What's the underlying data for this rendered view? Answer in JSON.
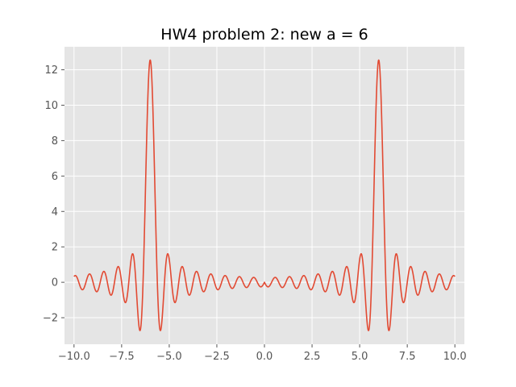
{
  "chart_data": {
    "type": "line",
    "title": "HW4 problem 2: new a = 6",
    "xlabel": "",
    "ylabel": "",
    "xlim": [
      -10.5,
      10.5
    ],
    "ylim": [
      -3.5,
      13.3
    ],
    "grid": true,
    "legend": "none",
    "x_ticks": [
      -10.0,
      -7.5,
      -5.0,
      -2.5,
      0.0,
      2.5,
      5.0,
      7.5,
      10.0
    ],
    "x_tick_labels": [
      "−10.0",
      "−7.5",
      "−5.0",
      "−2.5",
      "0.0",
      "2.5",
      "5.0",
      "7.5",
      "10.0"
    ],
    "y_ticks": [
      -2,
      0,
      2,
      4,
      6,
      8,
      10,
      12
    ],
    "y_tick_labels": [
      "−2",
      "0",
      "2",
      "4",
      "6",
      "8",
      "10",
      "12"
    ],
    "series": [
      {
        "color": "#e24a33",
        "x_range": [
          -10,
          10
        ],
        "points": [
          [
            -10.0,
            0.0
          ],
          [
            -9.25,
            0.3
          ],
          [
            -8.6,
            0.4
          ],
          [
            -8.0,
            0.5
          ],
          [
            -7.6,
            0.65
          ],
          [
            -7.2,
            0.9
          ],
          [
            -6.8,
            1.65
          ],
          [
            -6.55,
            -1.3
          ],
          [
            -6.3,
            -2.8
          ],
          [
            -6.0,
            12.55
          ],
          [
            -5.7,
            -2.6
          ],
          [
            -5.5,
            1.5
          ],
          [
            -5.2,
            0.75
          ],
          [
            -4.9,
            0.55
          ],
          [
            -4.5,
            0.4
          ],
          [
            -3.5,
            0.25
          ],
          [
            -2.5,
            0.15
          ],
          [
            -1.0,
            0.05
          ],
          [
            0.0,
            0.0
          ],
          [
            1.0,
            0.05
          ],
          [
            2.5,
            0.15
          ],
          [
            3.5,
            0.25
          ],
          [
            4.5,
            0.4
          ],
          [
            4.9,
            0.55
          ],
          [
            5.2,
            0.75
          ],
          [
            5.5,
            1.5
          ],
          [
            5.7,
            -2.6
          ],
          [
            6.0,
            12.55
          ],
          [
            6.3,
            -2.8
          ],
          [
            6.55,
            -1.3
          ],
          [
            6.8,
            1.65
          ],
          [
            7.2,
            0.9
          ],
          [
            7.6,
            0.65
          ],
          [
            8.0,
            0.5
          ],
          [
            8.6,
            0.4
          ],
          [
            9.25,
            0.3
          ],
          [
            10.0,
            0.0
          ]
        ]
      }
    ]
  }
}
